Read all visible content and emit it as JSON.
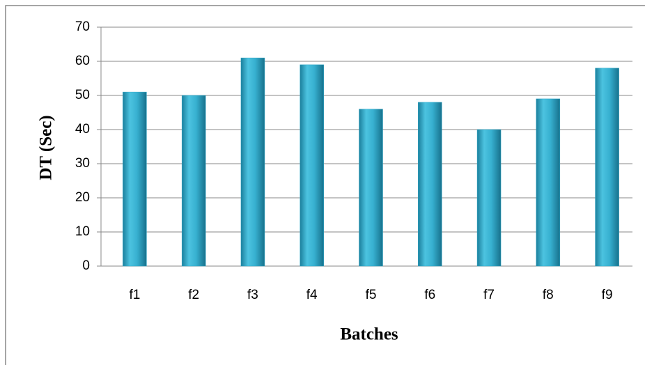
{
  "chart_data": {
    "type": "bar",
    "x_label": "Batches",
    "y_label": "DT (Sec)",
    "categories": [
      "f1",
      "f2",
      "f3",
      "f4",
      "f5",
      "f6",
      "f7",
      "f8",
      "f9"
    ],
    "values": [
      51,
      50,
      61,
      59,
      46,
      48,
      40,
      49,
      58
    ],
    "color": "#2fa8c8",
    "ylim": [
      0,
      70
    ],
    "yticks": [
      0,
      10,
      20,
      30,
      40,
      50,
      60,
      70
    ],
    "grid": true
  }
}
